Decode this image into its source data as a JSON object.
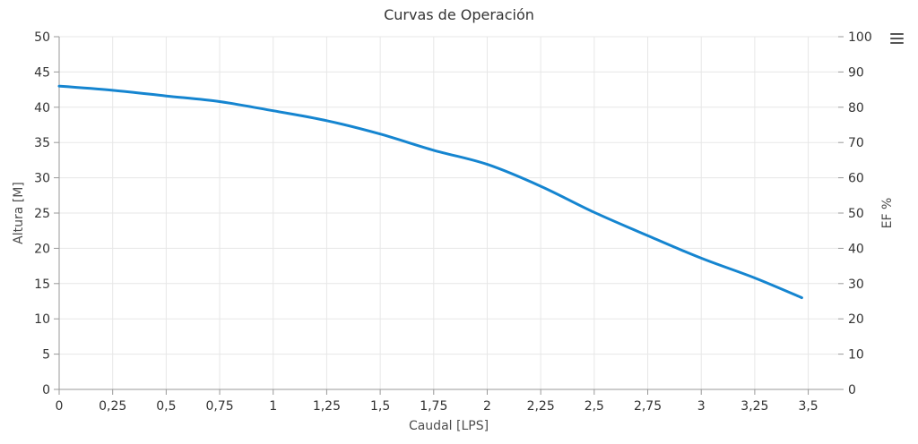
{
  "chart_data": {
    "type": "line",
    "title": "Curvas de Operación",
    "legend": "none",
    "grid": true,
    "x_axis": {
      "label": "Caudal [LPS]",
      "min": 0,
      "max": 3.64,
      "tick_interval": 0.25,
      "tick_values": [
        0,
        0.25,
        0.5,
        0.75,
        1,
        1.25,
        1.5,
        1.75,
        2,
        2.25,
        2.5,
        2.75,
        3,
        3.25,
        3.5
      ],
      "tick_labels": [
        "0",
        "0,25",
        "0,5",
        "0,75",
        "1",
        "1,25",
        "1,5",
        "1,75",
        "2",
        "2,25",
        "2,5",
        "2,75",
        "3",
        "3,25",
        "3,5"
      ]
    },
    "y_axis_left": {
      "label": "Altura [M]",
      "min": 0,
      "max": 50,
      "tick_interval": 5,
      "tick_values": [
        0,
        5,
        10,
        15,
        20,
        25,
        30,
        35,
        40,
        45,
        50
      ],
      "tick_labels": [
        "0",
        "5",
        "10",
        "15",
        "20",
        "25",
        "30",
        "35",
        "40",
        "45",
        "50"
      ]
    },
    "y_axis_right": {
      "label": "EF %",
      "min": 0,
      "max": 100,
      "tick_interval": 10,
      "tick_values": [
        0,
        10,
        20,
        30,
        40,
        50,
        60,
        70,
        80,
        90,
        100
      ],
      "tick_labels": [
        "0",
        "10",
        "20",
        "30",
        "40",
        "50",
        "60",
        "70",
        "80",
        "90",
        "100"
      ]
    },
    "series": [
      {
        "y_axis": "left",
        "color": "#1585d0",
        "line_width": 3,
        "points": [
          [
            0,
            43.0
          ],
          [
            0.25,
            42.4
          ],
          [
            0.5,
            41.6
          ],
          [
            0.75,
            40.8
          ],
          [
            1.0,
            39.5
          ],
          [
            1.25,
            38.1
          ],
          [
            1.5,
            36.2
          ],
          [
            1.75,
            33.9
          ],
          [
            2.0,
            31.9
          ],
          [
            2.25,
            28.8
          ],
          [
            2.5,
            25.1
          ],
          [
            2.75,
            21.8
          ],
          [
            3.0,
            18.6
          ],
          [
            3.25,
            15.8
          ],
          [
            3.47,
            13.0
          ]
        ]
      }
    ]
  },
  "icons": {
    "context_menu": "hamburger-icon"
  },
  "colors": {
    "background": "#ffffff",
    "line": "#1585d0",
    "grid": "#e7e7e7",
    "axis": "#999999",
    "tick_text": "#333333",
    "axis_title_text": "#4d4d4d",
    "menu_icon": "#555555"
  }
}
